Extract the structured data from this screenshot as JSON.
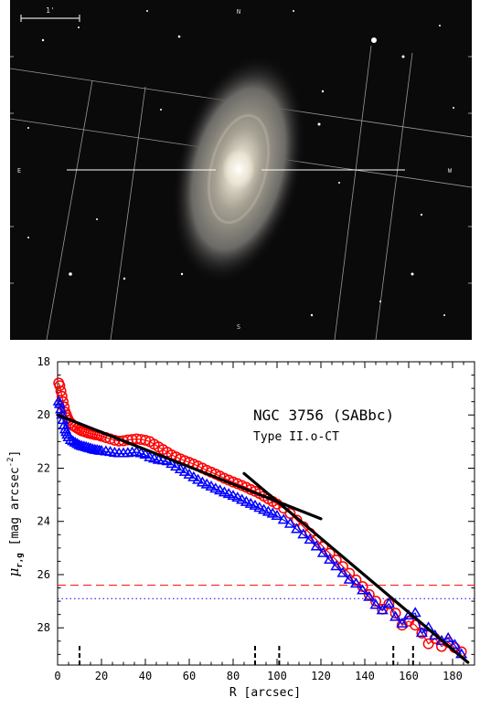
{
  "galaxy_image": {
    "orientation_labels": {
      "north": "N",
      "south": "S",
      "east": "E",
      "west": "W"
    },
    "scale_bar_label": "1'",
    "colors": {
      "sky": "#0b0a0b",
      "disk": "#9a9486",
      "bulge": "#f2efe6",
      "grid": "#c8c8c8"
    }
  },
  "chart_data": {
    "type": "scatter",
    "title": "NGC 3756 (SABbc)",
    "subtitle": "Type II.o-CT",
    "xlabel": "R [arcsec]",
    "ylabel": "μ",
    "ylabel_sub": "r,g",
    "ylabel_units": "[mag arcsec",
    "ylabel_exp": "-2",
    "ylabel_close": "]",
    "xlim": [
      0,
      190
    ],
    "ylim": [
      18,
      29.4
    ],
    "y_inverted": true,
    "xticks": [
      "0",
      "20",
      "40",
      "60",
      "80",
      "100",
      "120",
      "140",
      "160",
      "180"
    ],
    "yticks": [
      "18",
      "20",
      "22",
      "24",
      "26",
      "28"
    ],
    "series": [
      {
        "color": "#ff0000",
        "marker": "circle",
        "x": [
          0.5,
          1,
          1.5,
          2,
          2.5,
          3,
          3.5,
          4,
          4.5,
          5,
          6,
          7,
          8,
          9,
          10,
          11,
          12,
          13,
          14,
          15,
          16,
          17,
          18,
          19,
          20,
          22,
          24,
          26,
          28,
          30,
          32,
          34,
          36,
          38,
          40,
          42,
          44,
          46,
          48,
          50,
          52,
          54,
          56,
          58,
          60,
          62,
          64,
          66,
          68,
          70,
          72,
          74,
          76,
          78,
          80,
          82,
          84,
          86,
          88,
          90,
          92,
          94,
          96,
          98,
          100,
          103,
          106,
          109,
          112,
          115,
          118,
          121,
          124,
          127,
          130,
          133,
          136,
          139,
          142,
          145,
          148,
          151,
          154,
          157,
          160,
          163,
          166,
          169,
          172,
          175,
          178,
          181,
          184
        ],
        "y": [
          18.8,
          18.9,
          19.1,
          19.3,
          19.5,
          19.7,
          19.9,
          20.0,
          20.1,
          20.2,
          20.3,
          20.4,
          20.45,
          20.5,
          20.55,
          20.6,
          20.62,
          20.65,
          20.68,
          20.7,
          20.72,
          20.74,
          20.75,
          20.77,
          20.8,
          20.85,
          20.9,
          20.95,
          20.98,
          20.97,
          20.94,
          20.92,
          20.9,
          20.92,
          20.95,
          21.0,
          21.1,
          21.2,
          21.3,
          21.4,
          21.5,
          21.58,
          21.65,
          21.72,
          21.78,
          21.85,
          21.92,
          22.0,
          22.08,
          22.15,
          22.22,
          22.3,
          22.38,
          22.45,
          22.52,
          22.58,
          22.65,
          22.72,
          22.8,
          22.87,
          22.95,
          23.05,
          23.15,
          23.25,
          23.35,
          23.5,
          23.7,
          23.95,
          24.2,
          24.45,
          24.7,
          24.95,
          25.2,
          25.45,
          25.7,
          25.95,
          26.2,
          26.45,
          26.75,
          27.0,
          27.3,
          27.1,
          27.45,
          27.9,
          27.75,
          27.9,
          28.2,
          28.6,
          28.4,
          28.7,
          28.55,
          28.75,
          28.9
        ]
      },
      {
        "color": "#0000ff",
        "marker": "triangle",
        "x": [
          0.5,
          1,
          1.5,
          2,
          2.5,
          3,
          3.5,
          4,
          4.5,
          5,
          6,
          7,
          8,
          9,
          10,
          11,
          12,
          13,
          14,
          15,
          16,
          17,
          18,
          19,
          20,
          22,
          24,
          26,
          28,
          30,
          32,
          34,
          36,
          38,
          40,
          42,
          44,
          46,
          48,
          50,
          52,
          54,
          56,
          58,
          60,
          62,
          64,
          66,
          68,
          70,
          72,
          74,
          76,
          78,
          80,
          82,
          84,
          86,
          88,
          90,
          92,
          94,
          96,
          98,
          100,
          103,
          106,
          109,
          112,
          115,
          118,
          121,
          124,
          127,
          130,
          133,
          136,
          139,
          142,
          145,
          148,
          151,
          154,
          157,
          160,
          163,
          166,
          169,
          172,
          175,
          178,
          181,
          184
        ],
        "y": [
          19.5,
          19.6,
          19.8,
          20.0,
          20.2,
          20.4,
          20.55,
          20.65,
          20.75,
          20.85,
          20.95,
          21.0,
          21.05,
          21.1,
          21.15,
          21.18,
          21.2,
          21.22,
          21.25,
          21.27,
          21.3,
          21.32,
          21.33,
          21.35,
          21.36,
          21.38,
          21.4,
          21.43,
          21.45,
          21.45,
          21.44,
          21.42,
          21.4,
          21.45,
          21.5,
          21.6,
          21.65,
          21.7,
          21.72,
          21.75,
          21.85,
          21.95,
          22.05,
          22.15,
          22.25,
          22.35,
          22.45,
          22.55,
          22.62,
          22.7,
          22.78,
          22.85,
          22.92,
          22.98,
          23.05,
          23.12,
          23.2,
          23.28,
          23.35,
          23.42,
          23.5,
          23.58,
          23.65,
          23.72,
          23.8,
          23.95,
          24.1,
          24.3,
          24.5,
          24.7,
          24.95,
          25.2,
          25.45,
          25.7,
          25.95,
          26.2,
          26.35,
          26.6,
          26.85,
          27.15,
          27.35,
          27.1,
          27.6,
          27.85,
          27.55,
          27.45,
          28.2,
          28.0,
          28.3,
          28.5,
          28.4,
          28.65,
          29.0
        ]
      }
    ],
    "fit_lines": [
      {
        "color": "#000000",
        "x": [
          0,
          120
        ],
        "y": [
          20.0,
          23.9
        ]
      },
      {
        "color": "#000000",
        "x": [
          85,
          187
        ],
        "y": [
          22.2,
          29.3
        ]
      }
    ],
    "hlines": [
      {
        "y": 26.4,
        "color": "#ff0000",
        "style": "dashed"
      },
      {
        "y": 26.9,
        "color": "#0000ff",
        "style": "dotted"
      }
    ],
    "vmarks": [
      10,
      90,
      101,
      153,
      162
    ]
  }
}
